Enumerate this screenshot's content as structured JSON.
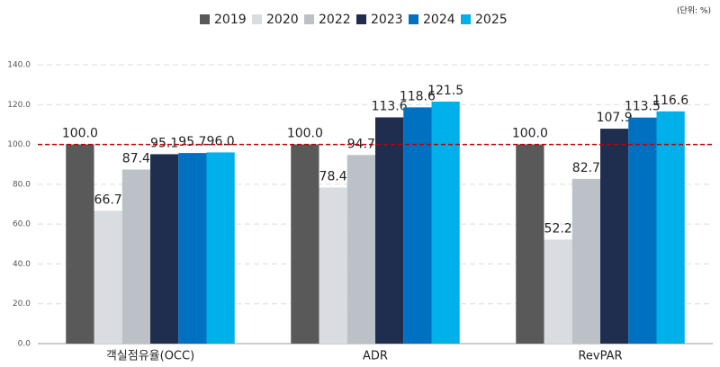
{
  "chart_data": {
    "type": "bar",
    "unit_label": "(단위: %)",
    "categories": [
      "객실점유율(OCC)",
      "ADR",
      "RevPAR"
    ],
    "series": [
      {
        "name": "2019",
        "color": "#595959",
        "values": [
          100.0,
          100.0,
          100.0
        ],
        "value_labels": [
          "100.0",
          "100.0",
          "100.0"
        ]
      },
      {
        "name": "2020",
        "color": "#d9dce1",
        "values": [
          66.7,
          78.4,
          52.2
        ]
      },
      {
        "name": "2022",
        "color": "#bcc1c8",
        "values": [
          87.4,
          94.7,
          82.7
        ]
      },
      {
        "name": "2023",
        "color": "#1f2d4e",
        "values": [
          95.1,
          113.6,
          107.9
        ]
      },
      {
        "name": "2024",
        "color": "#0070c0",
        "values": [
          95.7,
          118.6,
          113.5
        ]
      },
      {
        "name": "2025",
        "color": "#00b0e8",
        "values": [
          96.0,
          121.5,
          116.6
        ],
        "value_labels": [
          "96.0",
          "121.5",
          "116.6"
        ]
      }
    ],
    "ylim": [
      0,
      140
    ],
    "yticks": [
      {
        "value": 0,
        "label": "0.0"
      },
      {
        "value": 20,
        "label": "20.0"
      },
      {
        "value": 40,
        "label": "40.0"
      },
      {
        "value": 60,
        "label": "60.0"
      },
      {
        "value": 80,
        "label": "80.0"
      },
      {
        "value": 100,
        "label": "100.0"
      },
      {
        "value": 120,
        "label": "120.0"
      },
      {
        "value": 140,
        "label": "140.0"
      }
    ],
    "grid": true,
    "reference_line": 100,
    "reference_color": "#c00000",
    "legend": "top"
  }
}
